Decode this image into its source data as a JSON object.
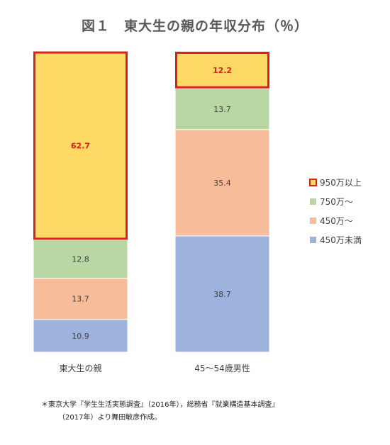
{
  "chart_data": {
    "type": "stacked-bar",
    "title": "図１　東大生の親の年収分布（％）",
    "categories": [
      "東大生の親",
      "45〜54歳男性"
    ],
    "series": [
      {
        "name": "450万未満",
        "color": "#9db3dd",
        "values": [
          10.9,
          38.7
        ]
      },
      {
        "name": "450万〜",
        "color": "#f7bd9a",
        "values": [
          13.7,
          35.4
        ]
      },
      {
        "name": "750万〜",
        "color": "#b8d7a3",
        "values": [
          12.8,
          13.7
        ]
      },
      {
        "name": "950万以上",
        "color": "#ffd966",
        "values": [
          62.7,
          12.2
        ],
        "highlight": true
      }
    ],
    "legend_order": [
      "950万以上",
      "750万〜",
      "450万〜",
      "450万未満"
    ],
    "legend_position": "right",
    "grid": false,
    "ylim": [
      0,
      100
    ],
    "highlight_color": "#d92121"
  },
  "footnote": {
    "line1": "＊東京大学『学生生活実態調査』（2016年），総務省『就業構造基本調査』",
    "line2": "（2017年）より舞田敏彦作成。"
  }
}
